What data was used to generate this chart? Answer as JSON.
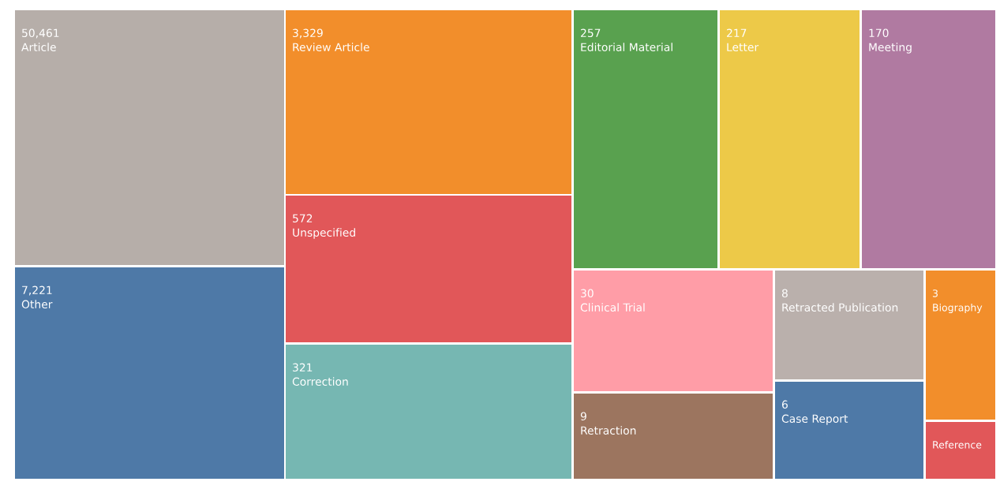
{
  "chart_data": {
    "type": "other",
    "data_labels": true,
    "categories": [
      "Article",
      "Other",
      "Review Article",
      "Unspecified",
      "Correction",
      "Editorial Material",
      "Letter",
      "Meeting",
      "Clinical Trial",
      "Retraction",
      "Retracted Publication",
      "Case Report",
      "Biography",
      "Reference"
    ],
    "values": [
      50461,
      7221,
      3329,
      572,
      321,
      257,
      217,
      170,
      30,
      9,
      8,
      6,
      3,
      null
    ],
    "value_labels": [
      "50,461",
      "7,221",
      "3,329",
      "572",
      "321",
      "257",
      "217",
      "170",
      "30",
      "9",
      "8",
      "6",
      "3",
      null
    ],
    "colors": [
      "#b6aea9",
      "#4e79a7",
      "#f28e2b",
      "#e15759",
      "#76b7b2",
      "#59a14f",
      "#edc948",
      "#b07aa1",
      "#ff9da7",
      "#9c755f",
      "#bab0ac",
      "#4e79a7",
      "#f28e2b",
      "#e15759"
    ]
  }
}
